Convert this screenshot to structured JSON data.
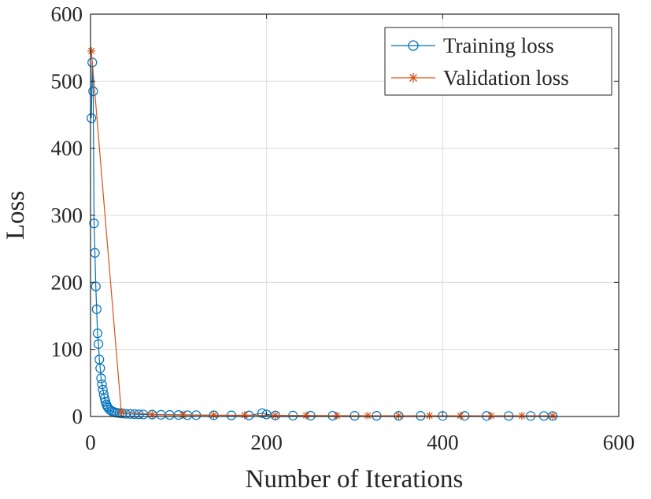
{
  "chart_data": {
    "type": "line",
    "title": "",
    "xlabel": "Number of Iterations",
    "ylabel": "Loss",
    "xlim": [
      0,
      600
    ],
    "ylim": [
      0,
      600
    ],
    "xticks": [
      0,
      200,
      400,
      600
    ],
    "yticks": [
      0,
      100,
      200,
      300,
      400,
      500,
      600
    ],
    "xtick_labels": [
      "0",
      "200",
      "400",
      "600"
    ],
    "ytick_labels": [
      "0",
      "100",
      "200",
      "300",
      "400",
      "500",
      "600"
    ],
    "grid": true,
    "legend_position": "top-right",
    "series": [
      {
        "name": "Training loss",
        "color": "#0072BD",
        "marker": "circle",
        "x": [
          1,
          2,
          3,
          4,
          5,
          6,
          7,
          8,
          9,
          10,
          11,
          12,
          13,
          14,
          15,
          16,
          17,
          18,
          19,
          20,
          22,
          24,
          26,
          28,
          30,
          33,
          36,
          40,
          45,
          50,
          55,
          60,
          70,
          80,
          90,
          100,
          110,
          120,
          140,
          160,
          180,
          195,
          200,
          210,
          230,
          250,
          275,
          300,
          325,
          350,
          375,
          400,
          425,
          450,
          475,
          500,
          515,
          525
        ],
        "y": [
          445,
          528,
          485,
          288,
          244,
          194,
          160,
          124,
          108,
          85,
          72,
          57,
          48,
          40,
          33,
          27,
          22,
          18,
          15,
          13,
          10,
          8,
          7,
          6,
          5.5,
          5,
          4.5,
          4,
          3.8,
          3.5,
          3.2,
          3,
          2.8,
          2.5,
          2.3,
          2.2,
          2,
          2,
          1.8,
          1.6,
          1.5,
          5,
          3,
          1.5,
          1.3,
          1.2,
          1.1,
          1,
          1,
          1,
          1,
          0.9,
          0.9,
          0.9,
          0.8,
          0.8,
          0.8,
          0.8
        ]
      },
      {
        "name": "Validation loss",
        "color": "#D95319",
        "marker": "star",
        "x": [
          1,
          35,
          70,
          105,
          140,
          175,
          210,
          245,
          280,
          315,
          350,
          385,
          420,
          455,
          490,
          525
        ],
        "y": [
          545,
          7,
          3,
          2.5,
          2,
          2,
          1.5,
          1.5,
          1.2,
          1.2,
          1.1,
          1.1,
          1,
          1,
          1,
          1
        ]
      }
    ]
  }
}
